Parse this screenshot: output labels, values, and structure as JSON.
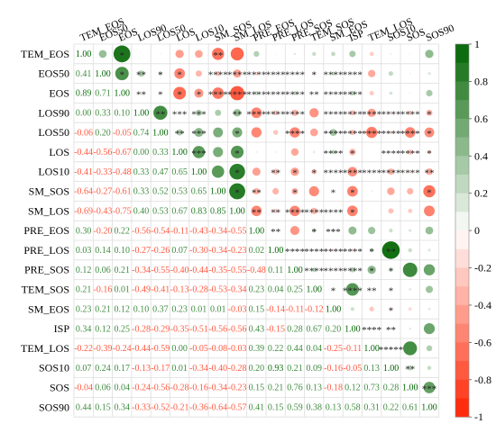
{
  "chart_data": {
    "type": "heatmap",
    "variables": [
      "TEM_EOS",
      "EOS50",
      "EOS",
      "LOS90",
      "LOS50",
      "LOS",
      "LOS10",
      "SM_SOS",
      "SM_LOS",
      "PRE_EOS",
      "PRE_LOS",
      "PRE_SOS",
      "TEM_SOS",
      "SM_EOS",
      "ISP",
      "TEM_LOS",
      "SOS10",
      "SOS",
      "SOS90"
    ],
    "lower_triangle": [
      [
        1.0
      ],
      [
        0.41,
        1.0
      ],
      [
        0.89,
        0.71,
        1.0
      ],
      [
        0.0,
        0.33,
        0.1,
        1.0
      ],
      [
        -0.06,
        0.2,
        -0.05,
        0.74,
        1.0
      ],
      [
        -0.44,
        -0.56,
        -0.67,
        0.0,
        0.33,
        1.0
      ],
      [
        -0.41,
        -0.33,
        -0.48,
        0.33,
        0.47,
        0.65,
        1.0
      ],
      [
        -0.64,
        -0.27,
        -0.61,
        0.33,
        0.52,
        0.53,
        0.65,
        1.0
      ],
      [
        -0.69,
        -0.43,
        -0.75,
        0.4,
        0.53,
        0.67,
        0.83,
        0.85,
        1.0
      ],
      [
        0.3,
        -0.2,
        0.22,
        -0.56,
        -0.54,
        -0.11,
        -0.43,
        -0.34,
        -0.55,
        1.0
      ],
      [
        0.03,
        0.14,
        0.1,
        -0.27,
        -0.26,
        0.07,
        -0.3,
        -0.34,
        -0.23,
        0.02,
        1.0
      ],
      [
        0.12,
        0.06,
        0.21,
        -0.34,
        -0.55,
        -0.4,
        -0.44,
        -0.35,
        -0.55,
        -0.48,
        0.11,
        1.0
      ],
      [
        0.21,
        -0.16,
        0.01,
        -0.49,
        -0.41,
        -0.13,
        -0.28,
        -0.53,
        -0.34,
        0.23,
        0.04,
        0.25,
        1.0
      ],
      [
        0.23,
        0.21,
        0.12,
        0.1,
        0.37,
        0.23,
        0.01,
        0.01,
        -0.03,
        0.15,
        -0.14,
        -0.11,
        -0.12,
        1.0
      ],
      [
        0.34,
        0.12,
        0.25,
        -0.28,
        -0.29,
        -0.35,
        -0.51,
        -0.56,
        -0.56,
        0.43,
        -0.15,
        0.28,
        0.67,
        0.2,
        1.0
      ],
      [
        -0.22,
        -0.39,
        -0.24,
        -0.44,
        -0.59,
        0.0,
        -0.05,
        -0.08,
        -0.03,
        0.39,
        0.22,
        0.44,
        0.04,
        -0.25,
        -0.11,
        1.0
      ],
      [
        0.07,
        0.24,
        0.17,
        -0.13,
        -0.17,
        0.01,
        -0.34,
        -0.4,
        -0.28,
        0.2,
        0.93,
        0.21,
        0.09,
        -0.16,
        -0.05,
        0.13,
        1.0
      ],
      [
        -0.04,
        0.06,
        0.04,
        -0.24,
        -0.56,
        -0.28,
        -0.16,
        -0.34,
        -0.23,
        0.15,
        0.21,
        0.76,
        0.13,
        -0.18,
        0.12,
        0.73,
        0.28,
        1.0
      ],
      [
        0.44,
        0.15,
        0.34,
        -0.33,
        -0.52,
        -0.21,
        -0.36,
        -0.64,
        -0.57,
        0.41,
        0.15,
        0.59,
        0.38,
        0.13,
        0.58,
        0.31,
        0.22,
        0.61,
        1.0
      ]
    ],
    "upper_stars": [
      [
        "",
        "",
        "*",
        "",
        "",
        "",
        "",
        "**",
        "",
        "",
        "",
        "",
        "",
        "",
        "",
        "",
        "",
        "",
        ""
      ],
      [
        "",
        "",
        "*",
        "**",
        "*",
        "*",
        "",
        "****",
        "****",
        "****",
        "****",
        "****",
        "*",
        "****",
        "****",
        "",
        "",
        "",
        ""
      ],
      [
        "",
        "",
        "",
        "**",
        "*",
        "*",
        "*",
        "****",
        "****",
        "****",
        "****",
        "****",
        "**",
        "****",
        "****",
        "",
        "",
        "",
        ""
      ],
      [
        "",
        "",
        "",
        "",
        "**",
        "***",
        "***",
        "",
        "**",
        "****",
        "****",
        "****",
        "",
        "****",
        "****",
        "****",
        "****",
        "****",
        "*"
      ],
      [
        "",
        "",
        "",
        "",
        "",
        "**",
        "***",
        "",
        "*",
        "",
        "",
        "****",
        "",
        "****",
        "****",
        "****",
        "****",
        "****",
        "*"
      ],
      [
        "",
        "",
        "",
        "",
        "",
        "",
        "***",
        "",
        "*",
        "",
        "",
        "",
        "",
        "****",
        "*",
        "",
        "****",
        "****",
        "*"
      ],
      [
        "",
        "",
        "",
        "",
        "",
        "",
        "",
        "",
        "*",
        "",
        "**",
        "*",
        "*",
        "****",
        "****",
        "****",
        "****",
        "****",
        "**"
      ],
      [
        "",
        "",
        "",
        "",
        "",
        "",
        "",
        "",
        "*",
        "**",
        "",
        "*",
        "",
        "*",
        "*",
        "",
        "",
        "",
        "*"
      ],
      [
        "",
        "",
        "",
        "",
        "",
        "",
        "",
        "",
        "",
        "**",
        "**",
        "****",
        "****",
        "****",
        "*",
        "",
        "",
        "",
        ""
      ],
      [
        "",
        "",
        "",
        "",
        "",
        "",
        "",
        "",
        "",
        "",
        "**",
        "",
        "*",
        "***",
        "",
        "",
        "",
        "",
        ""
      ],
      [
        "",
        "",
        "",
        "",
        "",
        "",
        "",
        "",
        "",
        "",
        "",
        "****",
        "****",
        "****",
        "****",
        "*",
        "**",
        "",
        ""
      ],
      [
        "",
        "",
        "",
        "",
        "",
        "",
        "",
        "",
        "",
        "",
        "",
        "",
        "****",
        "****",
        "****",
        "*",
        "*",
        "",
        ""
      ],
      [
        "",
        "",
        "",
        "",
        "",
        "",
        "",
        "",
        "",
        "",
        "",
        "",
        "",
        "*",
        "****",
        "**",
        "*",
        "",
        ""
      ],
      [
        "",
        "",
        "",
        "",
        "",
        "",
        "",
        "",
        "",
        "",
        "",
        "",
        "",
        "",
        "",
        "",
        "*",
        "",
        ""
      ],
      [
        "",
        "",
        "",
        "",
        "",
        "",
        "",
        "",
        "",
        "",
        "",
        "",
        "",
        "",
        "",
        "****",
        "**",
        "",
        ""
      ],
      [
        "",
        "",
        "",
        "",
        "",
        "",
        "",
        "",
        "",
        "",
        "",
        "",
        "",
        "",
        "",
        "",
        "*****",
        "",
        ""
      ],
      [
        "",
        "",
        "",
        "",
        "",
        "",
        "",
        "",
        "",
        "",
        "",
        "",
        "",
        "",
        "",
        "",
        "",
        "**",
        ""
      ],
      [
        "",
        "",
        "",
        "",
        "",
        "",
        "",
        "",
        "",
        "",
        "",
        "",
        "",
        "",
        "",
        "",
        "",
        "",
        "***"
      ],
      [
        "",
        "",
        "",
        "",
        "",
        "",
        "",
        "",
        "",
        "",
        "",
        "",
        "",
        "",
        "",
        "",
        "",
        "",
        ""
      ]
    ],
    "colorbar": {
      "range": [
        -1,
        1
      ],
      "ticks": [
        "1",
        "0.8",
        "0.6",
        "0.4",
        "0.2",
        "0",
        "-0.2",
        "-0.4",
        "-0.6",
        "-0.8",
        "-1"
      ],
      "positive_color": "#006400",
      "negative_color": "#ff2200"
    }
  }
}
